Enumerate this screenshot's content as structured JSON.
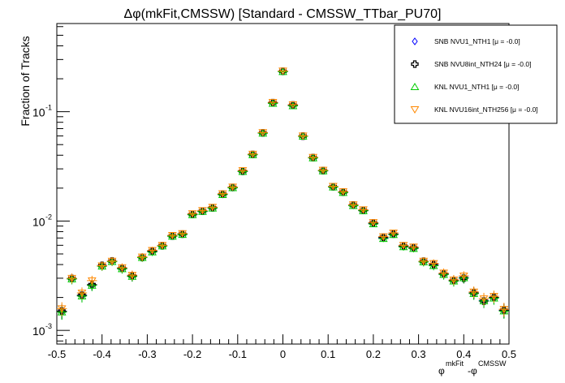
{
  "chart_data": {
    "type": "scatter",
    "title": "Δφ(mkFit,CMSSW) [Standard - CMSSW_TTbar_PU70]",
    "xlabel_main": "φ",
    "xlabel_sup1": "mkFit",
    "xlabel_mid": "-φ",
    "xlabel_sup2": "CMSSW",
    "ylabel": "Fraction of Tracks",
    "xlim": [
      -0.5,
      0.5
    ],
    "ylim": [
      0.00075,
      0.64
    ],
    "yscale": "log",
    "legend_placement": "top-right",
    "x_ticks": [
      "-0.5",
      "-0.4",
      "-0.3",
      "-0.2",
      "-0.1",
      "0",
      "0.1",
      "0.2",
      "0.3",
      "0.4",
      "0.5"
    ],
    "y_ticks": [
      {
        "base": "10",
        "exp": "-3",
        "value": 0.001
      },
      {
        "base": "10",
        "exp": "-2",
        "value": 0.01
      },
      {
        "base": "10",
        "exp": "-1",
        "value": 0.1
      }
    ],
    "x": [
      -0.4889,
      -0.4667,
      -0.4444,
      -0.4222,
      -0.4,
      -0.3778,
      -0.3556,
      -0.3333,
      -0.3111,
      -0.2889,
      -0.2667,
      -0.2444,
      -0.2222,
      -0.2,
      -0.1778,
      -0.1556,
      -0.1333,
      -0.1111,
      -0.0889,
      -0.0667,
      -0.0444,
      -0.0222,
      0,
      0.0222,
      0.0444,
      0.0667,
      0.0889,
      0.1111,
      0.1333,
      0.1556,
      0.1778,
      0.2,
      0.2222,
      0.2444,
      0.2667,
      0.2889,
      0.3111,
      0.3333,
      0.3556,
      0.3778,
      0.4,
      0.4222,
      0.4444,
      0.4667,
      0.4889
    ],
    "series": [
      {
        "name": "SNB NVU1_NTH1 [μ = -0.0]",
        "marker": "diamond",
        "color": "#0000ff",
        "values": [
          0.00148,
          0.00296,
          0.00208,
          0.0026,
          0.00389,
          0.00428,
          0.00367,
          0.00313,
          0.00467,
          0.0053,
          0.00593,
          0.00728,
          0.00757,
          0.0115,
          0.0123,
          0.0132,
          0.0175,
          0.0202,
          0.0284,
          0.0405,
          0.0638,
          0.12,
          0.233,
          0.114,
          0.0597,
          0.0379,
          0.0288,
          0.0205,
          0.0183,
          0.0139,
          0.0125,
          0.0095,
          0.007,
          0.0076,
          0.0059,
          0.0057,
          0.00425,
          0.004,
          0.00326,
          0.00284,
          0.00305,
          0.00219,
          0.00188,
          0.00199,
          0.00152
        ]
      },
      {
        "name": "SNB NVU8int_NTH24 [μ = -0.0]",
        "marker": "cross",
        "color": "#000000",
        "values": [
          0.0015,
          0.00298,
          0.0021,
          0.00262,
          0.00392,
          0.0043,
          0.0037,
          0.00315,
          0.00465,
          0.0053,
          0.00595,
          0.0073,
          0.0076,
          0.0115,
          0.0123,
          0.0132,
          0.0176,
          0.0203,
          0.0285,
          0.0406,
          0.064,
          0.121,
          0.234,
          0.115,
          0.0598,
          0.038,
          0.0289,
          0.0206,
          0.0184,
          0.014,
          0.0125,
          0.0096,
          0.0071,
          0.0076,
          0.0059,
          0.0057,
          0.00428,
          0.004,
          0.00328,
          0.00286,
          0.003,
          0.0022,
          0.00185,
          0.002,
          0.00153
        ]
      },
      {
        "name": "KNL NVU1_NTH1 [μ = -0.0]",
        "marker": "triangle-up",
        "color": "#00cc00",
        "values": [
          0.00147,
          0.00295,
          0.00206,
          0.00258,
          0.00386,
          0.00425,
          0.00365,
          0.00311,
          0.00463,
          0.0052,
          0.0059,
          0.00725,
          0.00752,
          0.0114,
          0.0122,
          0.0131,
          0.0174,
          0.0201,
          0.0283,
          0.0403,
          0.0635,
          0.119,
          0.232,
          0.113,
          0.0595,
          0.0377,
          0.0287,
          0.0204,
          0.0182,
          0.0138,
          0.0124,
          0.0094,
          0.0069,
          0.0075,
          0.0058,
          0.0056,
          0.00422,
          0.0039,
          0.00324,
          0.00282,
          0.00302,
          0.00217,
          0.00186,
          0.00197,
          0.0015
        ]
      },
      {
        "name": "KNL NVU16int_NTH256 [μ = -0.0]",
        "marker": "triangle-down",
        "color": "#ff8800",
        "values": [
          0.00158,
          0.003,
          0.0022,
          0.00285,
          0.0039,
          0.0043,
          0.00375,
          0.0032,
          0.0047,
          0.0054,
          0.006,
          0.0074,
          0.0077,
          0.0117,
          0.0125,
          0.0134,
          0.0178,
          0.0205,
          0.029,
          0.041,
          0.0645,
          0.122,
          0.236,
          0.116,
          0.0602,
          0.0383,
          0.0292,
          0.0208,
          0.0186,
          0.0141,
          0.0127,
          0.0097,
          0.0072,
          0.0078,
          0.006,
          0.0058,
          0.0043,
          0.0041,
          0.00335,
          0.0029,
          0.00315,
          0.00225,
          0.00195,
          0.00205,
          0.00156
        ]
      }
    ]
  }
}
